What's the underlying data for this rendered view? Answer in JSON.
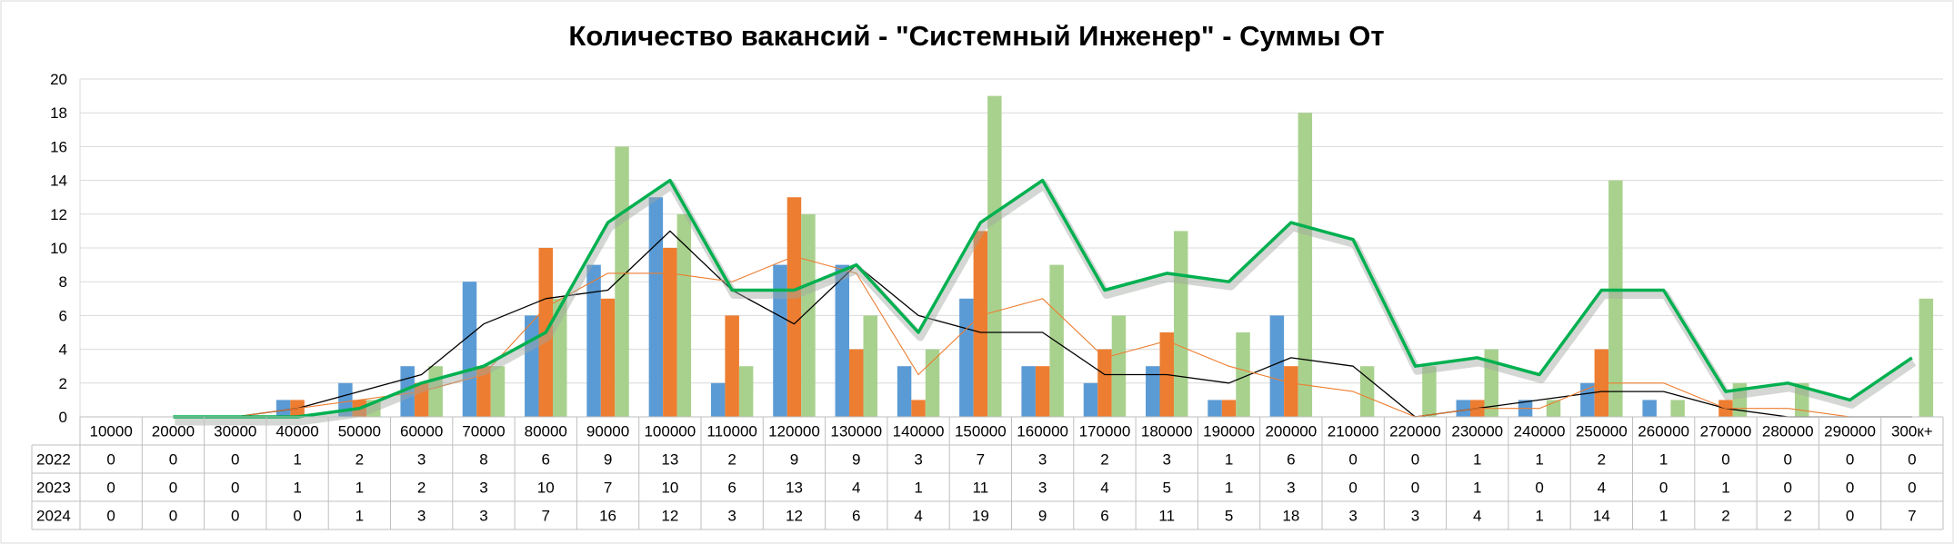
{
  "chart_data": {
    "type": "bar",
    "title": "Количество вакансий - \"Системный Инженер\" - Суммы От",
    "categories": [
      "10000",
      "20000",
      "30000",
      "40000",
      "50000",
      "60000",
      "70000",
      "80000",
      "90000",
      "100000",
      "110000",
      "120000",
      "130000",
      "140000",
      "150000",
      "160000",
      "170000",
      "180000",
      "190000",
      "200000",
      "210000",
      "220000",
      "230000",
      "240000",
      "250000",
      "260000",
      "270000",
      "280000",
      "290000",
      "300к+"
    ],
    "series": [
      {
        "name": "2022",
        "color": "#5b9bd5",
        "values": [
          0,
          0,
          0,
          1,
          2,
          3,
          8,
          6,
          9,
          13,
          2,
          9,
          9,
          3,
          7,
          3,
          2,
          3,
          1,
          6,
          0,
          0,
          1,
          1,
          2,
          1,
          0,
          0,
          0,
          0
        ]
      },
      {
        "name": "2023",
        "color": "#ed7d31",
        "values": [
          0,
          0,
          0,
          1,
          1,
          2,
          3,
          10,
          7,
          10,
          6,
          13,
          4,
          1,
          11,
          3,
          4,
          5,
          1,
          3,
          0,
          0,
          1,
          0,
          4,
          0,
          1,
          0,
          0,
          0
        ]
      },
      {
        "name": "2024",
        "color": "#a9d18e",
        "values": [
          0,
          0,
          0,
          0,
          1,
          3,
          3,
          7,
          16,
          12,
          3,
          12,
          6,
          4,
          19,
          9,
          6,
          11,
          5,
          18,
          3,
          3,
          4,
          1,
          14,
          1,
          2,
          2,
          0,
          7
        ]
      }
    ],
    "trendlines": [
      {
        "series": "2022",
        "type": "moving-average-2",
        "color": "#000000"
      },
      {
        "series": "2023",
        "type": "moving-average-2",
        "color": "#ed7d31"
      },
      {
        "series": "2024",
        "type": "moving-average-2",
        "color": "#00b050"
      }
    ],
    "ylim": [
      0,
      20
    ],
    "yticks": [
      0,
      2,
      4,
      6,
      8,
      10,
      12,
      14,
      16,
      18,
      20
    ],
    "grid": true,
    "data_table": true
  }
}
